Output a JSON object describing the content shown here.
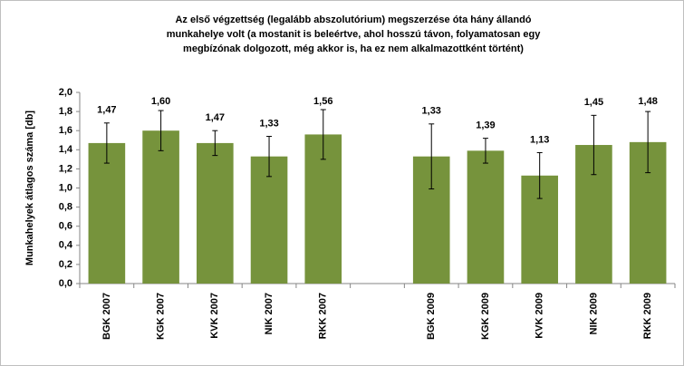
{
  "chart_data": {
    "type": "bar",
    "title": [
      "Az első végzettség (legalább abszolutórium) megszerzése óta hány állandó",
      "munkahelye volt (a mostanit is beleértve, ahol hosszú távon, folyamatosan egy",
      "megbízónak dolgozott, még akkor is, ha ez nem alkalmazottként történt)"
    ],
    "y_label": "Munkahelyek átlagos száma [db]",
    "categories": [
      "BGK 2007",
      "KGK 2007",
      "KVK 2007",
      "NIK 2007",
      "RKK 2007",
      null,
      "BGK 2009",
      "KGK 2009",
      "KVK 2009",
      "NIK 2009",
      "RKK 2009"
    ],
    "values": [
      1.47,
      1.6,
      1.47,
      1.33,
      1.56,
      null,
      1.33,
      1.39,
      1.13,
      1.45,
      1.48
    ],
    "value_labels": [
      "1,47",
      "1,60",
      "1,47",
      "1,33",
      "1,56",
      null,
      "1,33",
      "1,39",
      "1,13",
      "1,45",
      "1,48"
    ],
    "error": [
      0.21,
      0.21,
      0.13,
      0.21,
      0.26,
      null,
      0.34,
      0.13,
      0.24,
      0.31,
      0.32
    ],
    "color": "#76933c",
    "ylim": [
      0,
      2
    ],
    "yticks": [
      {
        "value": 0,
        "label": "0,0"
      },
      {
        "value": 0.2,
        "label": "0,2"
      },
      {
        "value": 0.4,
        "label": "0,4"
      },
      {
        "value": 0.6,
        "label": "0,6"
      },
      {
        "value": 0.8,
        "label": "0,8"
      },
      {
        "value": 1.0,
        "label": "1,0"
      },
      {
        "value": 1.2,
        "label": "1,2"
      },
      {
        "value": 1.4,
        "label": "1,4"
      },
      {
        "value": 1.6,
        "label": "1,6"
      },
      {
        "value": 1.8,
        "label": "1,8"
      },
      {
        "value": 2.0,
        "label": "2,0"
      }
    ],
    "grid": false
  }
}
